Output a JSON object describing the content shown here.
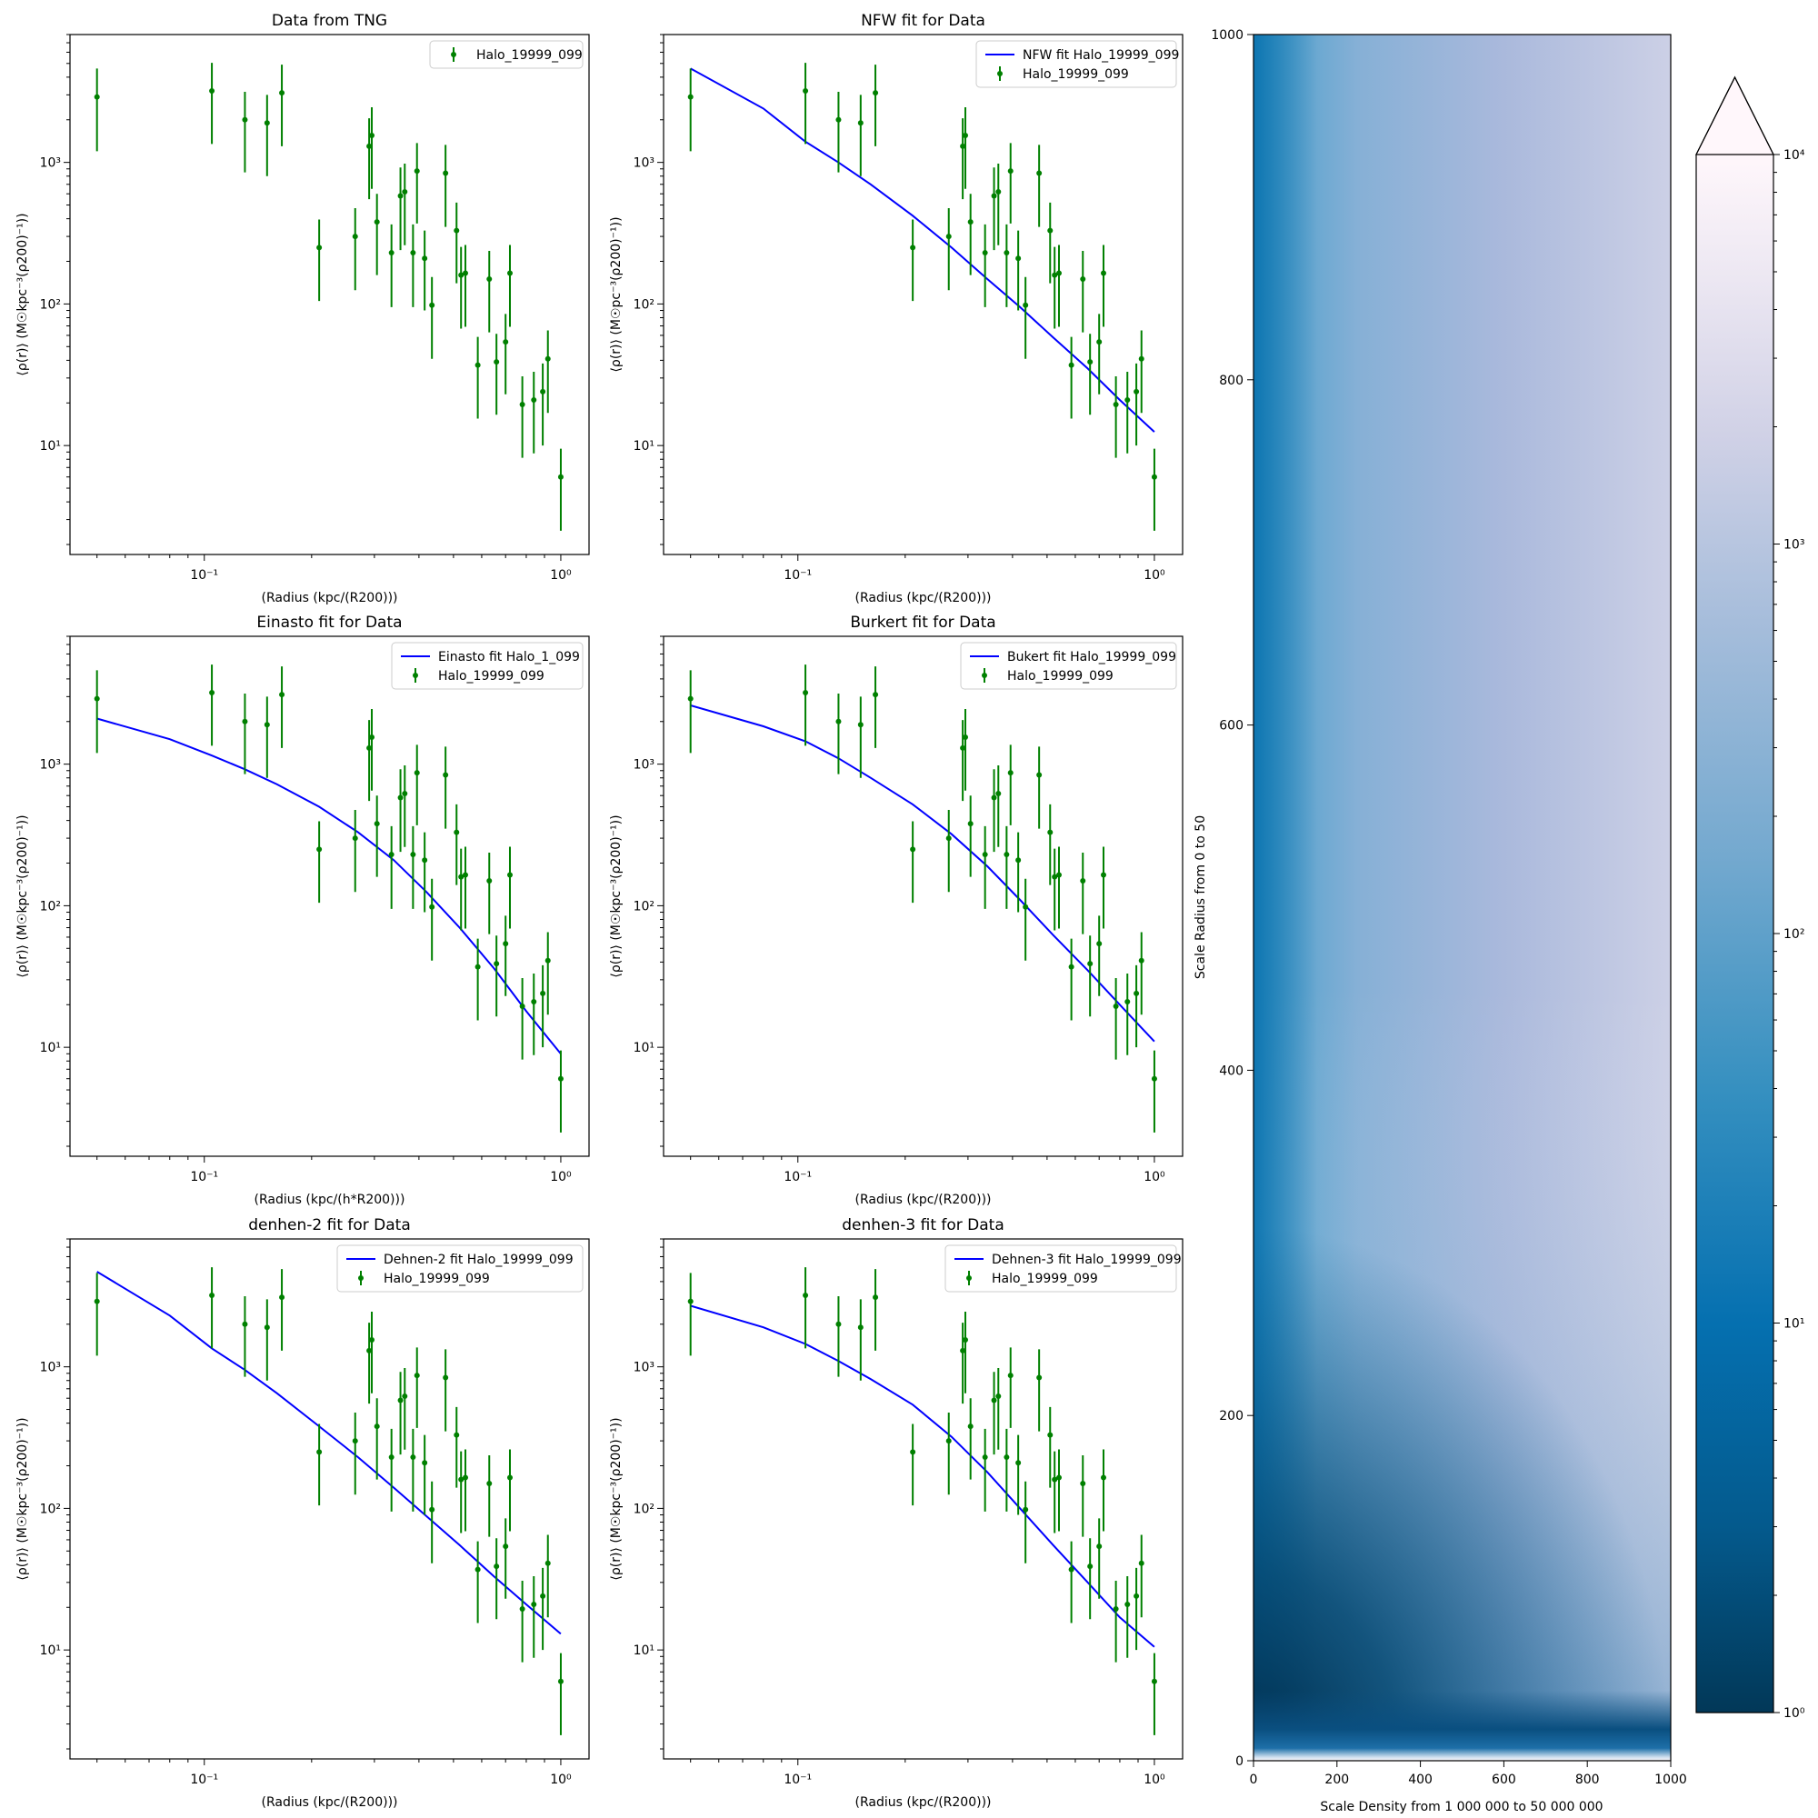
{
  "chart_data": [
    {
      "type": "scatter",
      "title": "Data from TNG",
      "xlabel": "(Radius (kpc/(R200)))",
      "ylabel": "⟨ρ(r)⟩ (M☉kpc⁻³(ρ200)⁻¹))",
      "xscale": "log",
      "yscale": "log",
      "xlim": [
        0.042,
        1.2
      ],
      "ylim": [
        1.7,
        8000
      ],
      "legend_position": "top-right",
      "series": [
        {
          "name": "Halo_19999_099",
          "kind": "errorbar",
          "color": "#008000",
          "ref": "data"
        }
      ]
    },
    {
      "type": "line",
      "title": "NFW fit for Data",
      "xlabel": "(Radius (kpc/(R200)))",
      "ylabel": "⟨ρ(r)⟩ (M☉pc⁻³(ρ200)⁻¹))",
      "xscale": "log",
      "yscale": "log",
      "xlim": [
        0.042,
        1.2
      ],
      "ylim": [
        1.7,
        8000
      ],
      "legend_position": "top-right",
      "series": [
        {
          "name": "NFW fit Halo_19999_099",
          "kind": "line",
          "color": "#0000ff",
          "x": [
            0.05,
            0.08,
            0.105,
            0.13,
            0.16,
            0.21,
            0.27,
            0.34,
            0.42,
            0.52,
            0.65,
            0.8,
            1.0
          ],
          "y": [
            4600,
            2400,
            1400,
            1000,
            700,
            420,
            250,
            150,
            95,
            58,
            35,
            21,
            12.5
          ]
        },
        {
          "name": "Halo_19999_099",
          "kind": "errorbar",
          "color": "#008000",
          "ref": "data"
        }
      ]
    },
    {
      "type": "line",
      "title": "Einasto fit for Data",
      "xlabel": "(Radius (kpc/(h*R200)))",
      "ylabel": "⟨ρ(r)⟩ (M☉kpc⁻³(ρ200)⁻¹))",
      "xscale": "log",
      "yscale": "log",
      "xlim": [
        0.042,
        1.2
      ],
      "ylim": [
        1.7,
        8000
      ],
      "legend_position": "top-right",
      "series": [
        {
          "name": "Einasto fit Halo_1_099",
          "kind": "line",
          "color": "#0000ff",
          "x": [
            0.05,
            0.08,
            0.105,
            0.13,
            0.16,
            0.21,
            0.27,
            0.34,
            0.42,
            0.52,
            0.65,
            0.8,
            1.0
          ],
          "y": [
            2100,
            1500,
            1150,
            920,
            720,
            500,
            330,
            210,
            125,
            70,
            36,
            18,
            9
          ]
        },
        {
          "name": "Halo_19999_099",
          "kind": "errorbar",
          "color": "#008000",
          "ref": "data"
        }
      ]
    },
    {
      "type": "line",
      "title": "Burkert fit for Data",
      "xlabel": "(Radius (kpc/(R200)))",
      "ylabel": "⟨ρ(r)⟩ (M☉kpc⁻³(ρ200)⁻¹))",
      "xscale": "log",
      "yscale": "log",
      "xlim": [
        0.042,
        1.2
      ],
      "ylim": [
        1.7,
        8000
      ],
      "legend_position": "top-right",
      "series": [
        {
          "name": "Bukert fit Halo_19999_099",
          "kind": "line",
          "color": "#0000ff",
          "x": [
            0.05,
            0.08,
            0.105,
            0.13,
            0.16,
            0.21,
            0.27,
            0.34,
            0.42,
            0.52,
            0.65,
            0.8,
            1.0
          ],
          "y": [
            2600,
            1850,
            1450,
            1100,
            800,
            520,
            320,
            190,
            110,
            62,
            35,
            20,
            11
          ]
        },
        {
          "name": "Halo_19999_099",
          "kind": "errorbar",
          "color": "#008000",
          "ref": "data"
        }
      ]
    },
    {
      "type": "line",
      "title": "denhen-2 fit for Data",
      "xlabel": "(Radius (kpc/(R200)))",
      "ylabel": "⟨ρ(r)⟩ (M☉kpc⁻³(ρ200)⁻¹))",
      "xscale": "log",
      "yscale": "log",
      "xlim": [
        0.042,
        1.2
      ],
      "ylim": [
        1.7,
        8000
      ],
      "legend_position": "top-right",
      "series": [
        {
          "name": "Dehnen-2 fit Halo_19999_099",
          "kind": "line",
          "color": "#0000ff",
          "x": [
            0.05,
            0.08,
            0.105,
            0.13,
            0.16,
            0.21,
            0.27,
            0.34,
            0.42,
            0.52,
            0.65,
            0.8,
            1.0
          ],
          "y": [
            4700,
            2300,
            1350,
            950,
            650,
            380,
            230,
            140,
            88,
            55,
            33,
            21,
            13
          ]
        },
        {
          "name": "Halo_19999_099",
          "kind": "errorbar",
          "color": "#008000",
          "ref": "data"
        }
      ]
    },
    {
      "type": "line",
      "title": "denhen-3 fit for Data",
      "xlabel": "(Radius (kpc/(R200)))",
      "ylabel": "⟨ρ(r)⟩ (M☉kpc⁻³(ρ200)⁻¹))",
      "xscale": "log",
      "yscale": "log",
      "xlim": [
        0.042,
        1.2
      ],
      "ylim": [
        1.7,
        8000
      ],
      "legend_position": "top-right",
      "series": [
        {
          "name": "Dehnen-3 fit Halo_19999_099",
          "kind": "line",
          "color": "#0000ff",
          "x": [
            0.05,
            0.08,
            0.105,
            0.13,
            0.16,
            0.21,
            0.27,
            0.34,
            0.42,
            0.52,
            0.65,
            0.8,
            1.0
          ],
          "y": [
            2700,
            1900,
            1450,
            1100,
            820,
            540,
            320,
            180,
            100,
            55,
            30,
            17,
            10.5
          ]
        },
        {
          "name": "Halo_19999_099",
          "kind": "errorbar",
          "color": "#008000",
          "ref": "data"
        }
      ]
    },
    {
      "type": "heatmap",
      "xlabel": "Scale Density from 1 000 000 to 50 000 000",
      "ylabel": "Scale Radius from 0 to 50",
      "xlim": [
        0,
        1000
      ],
      "ylim": [
        0,
        1000
      ],
      "xticks": [
        0,
        200,
        400,
        600,
        800,
        1000
      ],
      "yticks": [
        0,
        200,
        400,
        600,
        800,
        1000
      ],
      "colormap": "PuBu_r",
      "colorbar": {
        "scale": "log",
        "range": [
          1,
          10000
        ],
        "extend": "max",
        "ticks": [
          "10⁰",
          "10¹",
          "10²",
          "10³",
          "10⁴"
        ]
      }
    }
  ],
  "data": {
    "x": [
      0.05,
      0.105,
      0.13,
      0.15,
      0.165,
      0.21,
      0.265,
      0.29,
      0.295,
      0.305,
      0.335,
      0.355,
      0.365,
      0.385,
      0.395,
      0.415,
      0.435,
      0.475,
      0.51,
      0.525,
      0.54,
      0.585,
      0.63,
      0.66,
      0.7,
      0.72,
      0.78,
      0.84,
      0.89,
      0.92,
      1.0
    ],
    "y": [
      2900,
      3200,
      2000,
      1900,
      3100,
      250,
      300,
      1300,
      1550,
      380,
      230,
      580,
      620,
      230,
      870,
      210,
      98,
      840,
      330,
      160,
      165,
      37,
      150,
      39,
      54,
      165,
      19.5,
      21,
      24,
      41,
      6
    ],
    "yerr_low": [
      1700,
      1850,
      1150,
      1100,
      1800,
      145,
      175,
      750,
      900,
      220,
      135,
      340,
      360,
      135,
      500,
      120,
      57,
      490,
      190,
      93,
      96,
      21.5,
      87,
      22.5,
      31,
      96,
      11.3,
      12.2,
      14,
      24,
      3.5
    ],
    "yerr_high": [
      1700,
      1850,
      1150,
      1100,
      1800,
      145,
      175,
      750,
      900,
      220,
      135,
      340,
      360,
      135,
      500,
      120,
      57,
      490,
      190,
      93,
      96,
      21.5,
      87,
      22.5,
      31,
      96,
      11.3,
      12.2,
      14,
      24,
      3.5
    ]
  },
  "ticklabels": {
    "x_log": [
      {
        "v": 0.1,
        "t": "10⁻¹"
      },
      {
        "v": 1,
        "t": "10⁰"
      }
    ],
    "y_log": [
      {
        "v": 10,
        "t": "10¹"
      },
      {
        "v": 100,
        "t": "10²"
      },
      {
        "v": 1000,
        "t": "10³"
      }
    ]
  }
}
